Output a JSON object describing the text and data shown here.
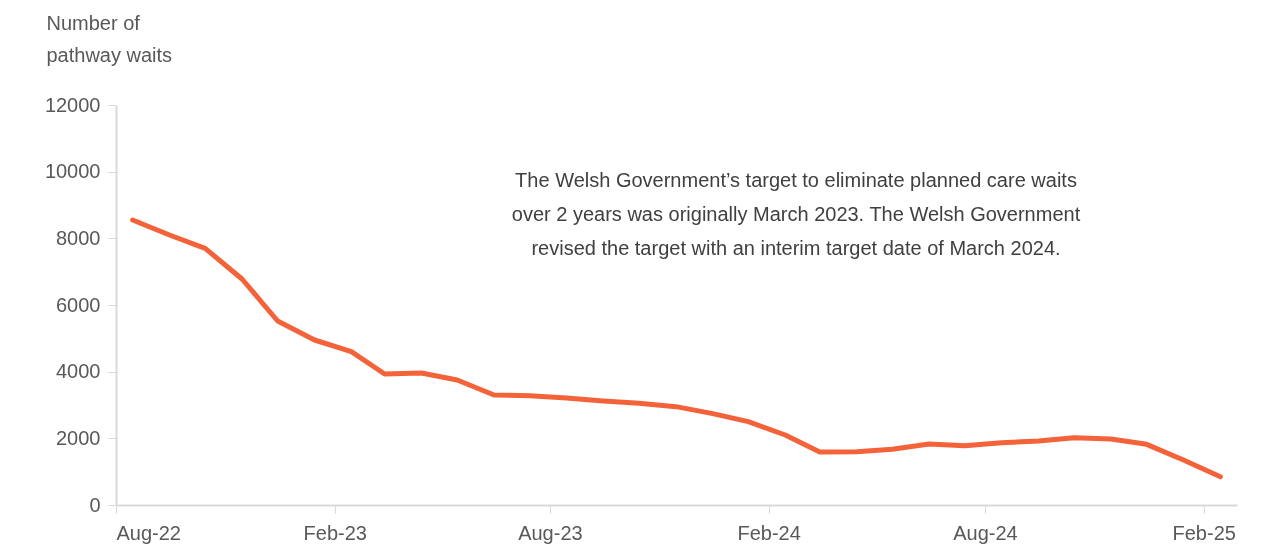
{
  "chart_data": {
    "type": "line",
    "ylabel": "Number of\npathway waits",
    "annotations": [
      "The Welsh Government’s target to eliminate planned care waits\nover 2 years was originally March 2023. The Welsh Government\nrevised the target with an interim target date of March 2024."
    ],
    "x": [
      "2022-08-15",
      "2022-09-15",
      "2022-10-15",
      "2022-11-15",
      "2022-12-15",
      "2023-01-15",
      "2023-02-15",
      "2023-03-15",
      "2023-04-15",
      "2023-05-15",
      "2023-06-15",
      "2023-07-15",
      "2023-08-15",
      "2023-09-15",
      "2023-10-15",
      "2023-11-15",
      "2023-12-15",
      "2024-01-15",
      "2024-02-15",
      "2024-03-15",
      "2024-04-15",
      "2024-05-15",
      "2024-06-15",
      "2024-07-15",
      "2024-08-15",
      "2024-09-15",
      "2024-10-15",
      "2024-11-15",
      "2024-12-15",
      "2025-01-15",
      "2025-02-15"
    ],
    "series": [
      {
        "color": "#f4623a",
        "values": [
          8550,
          8100,
          7700,
          6780,
          5520,
          4950,
          4600,
          3930,
          3960,
          3750,
          3300,
          3280,
          3210,
          3120,
          3050,
          2950,
          2750,
          2500,
          2100,
          1590,
          1600,
          1670,
          1830,
          1780,
          1870,
          1920,
          2020,
          1980,
          1820,
          1350,
          850
        ]
      }
    ],
    "xlim": [
      "2022-08-01",
      "2025-03-01"
    ],
    "xticks": [
      {
        "value": "2022-08-01",
        "label": "Aug-22"
      },
      {
        "value": "2023-02-01",
        "label": "Feb-23"
      },
      {
        "value": "2023-08-01",
        "label": "Aug-23"
      },
      {
        "value": "2024-02-01",
        "label": "Feb-24"
      },
      {
        "value": "2024-08-01",
        "label": "Aug-24"
      },
      {
        "value": "2025-02-01",
        "label": "Feb-25"
      }
    ],
    "ylim": [
      0,
      12000
    ],
    "yticks": [
      0,
      2000,
      4000,
      6000,
      8000,
      10000,
      12000
    ],
    "grid": false,
    "marker": "none",
    "line_style": "solid"
  }
}
